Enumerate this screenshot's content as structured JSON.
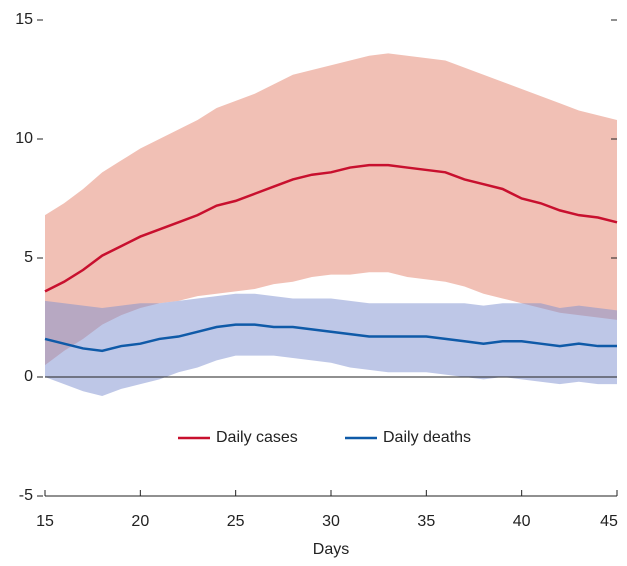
{
  "chart_data": {
    "type": "line",
    "x_label": "Days",
    "x": [
      15,
      16,
      17,
      18,
      19,
      20,
      21,
      22,
      23,
      24,
      25,
      26,
      27,
      28,
      29,
      30,
      31,
      32,
      33,
      34,
      35,
      36,
      37,
      38,
      39,
      40,
      41,
      42,
      43,
      44,
      45
    ],
    "xlim": [
      15,
      45
    ],
    "xticks": [
      15,
      20,
      25,
      30,
      35,
      40,
      45
    ],
    "ylim": [
      -5,
      15
    ],
    "yticks": [
      -5,
      0,
      5,
      10,
      15
    ],
    "legend": "center",
    "series": [
      {
        "name": "Daily cases",
        "color": "#c8102e",
        "band_color": "#eba596",
        "values": [
          3.6,
          4.0,
          4.5,
          5.1,
          5.5,
          5.9,
          6.2,
          6.5,
          6.8,
          7.2,
          7.4,
          7.7,
          8.0,
          8.3,
          8.5,
          8.6,
          8.8,
          8.9,
          8.9,
          8.8,
          8.7,
          8.6,
          8.3,
          8.1,
          7.9,
          7.5,
          7.3,
          7.0,
          6.8,
          6.7,
          6.5
        ],
        "upper": [
          6.8,
          7.3,
          7.9,
          8.6,
          9.1,
          9.6,
          10.0,
          10.4,
          10.8,
          11.3,
          11.6,
          11.9,
          12.3,
          12.7,
          12.9,
          13.1,
          13.3,
          13.5,
          13.6,
          13.5,
          13.4,
          13.3,
          13.0,
          12.7,
          12.4,
          12.1,
          11.8,
          11.5,
          11.2,
          11.0,
          10.8
        ],
        "lower": [
          0.5,
          1.1,
          1.6,
          2.2,
          2.6,
          2.9,
          3.1,
          3.2,
          3.4,
          3.5,
          3.6,
          3.7,
          3.9,
          4.0,
          4.2,
          4.3,
          4.3,
          4.4,
          4.4,
          4.2,
          4.1,
          4.0,
          3.8,
          3.5,
          3.3,
          3.1,
          2.9,
          2.7,
          2.6,
          2.5,
          2.4
        ]
      },
      {
        "name": "Daily deaths",
        "color": "#0f5aa8",
        "band_color": "#7d8fd0",
        "values": [
          1.6,
          1.4,
          1.2,
          1.1,
          1.3,
          1.4,
          1.6,
          1.7,
          1.9,
          2.1,
          2.2,
          2.2,
          2.1,
          2.1,
          2.0,
          1.9,
          1.8,
          1.7,
          1.7,
          1.7,
          1.7,
          1.6,
          1.5,
          1.4,
          1.5,
          1.5,
          1.4,
          1.3,
          1.4,
          1.3,
          1.3
        ],
        "upper": [
          3.2,
          3.1,
          3.0,
          2.9,
          3.0,
          3.1,
          3.1,
          3.2,
          3.3,
          3.4,
          3.5,
          3.5,
          3.4,
          3.3,
          3.3,
          3.3,
          3.2,
          3.1,
          3.1,
          3.1,
          3.1,
          3.1,
          3.1,
          3.0,
          3.1,
          3.1,
          3.1,
          2.9,
          3.0,
          2.9,
          2.8
        ],
        "lower": [
          0,
          -0.3,
          -0.6,
          -0.8,
          -0.5,
          -0.3,
          -0.1,
          0.2,
          0.4,
          0.7,
          0.9,
          0.9,
          0.9,
          0.8,
          0.7,
          0.6,
          0.4,
          0.3,
          0.2,
          0.2,
          0.2,
          0.1,
          0,
          -0.1,
          0,
          -0.1,
          -0.2,
          -0.3,
          -0.2,
          -0.3,
          -0.3
        ]
      }
    ]
  }
}
